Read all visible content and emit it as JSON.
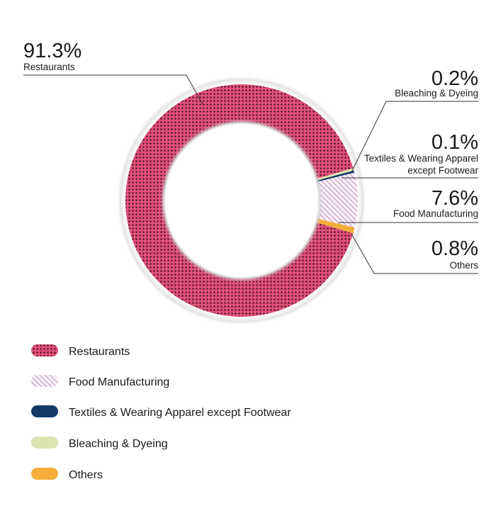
{
  "chart_data": {
    "type": "pie",
    "style": "donut",
    "categories": [
      "Restaurants",
      "Food Manufacturing",
      "Textiles & Wearing Apparel except Footwear",
      "Bleaching & Dyeing",
      "Others"
    ],
    "values": [
      91.3,
      7.6,
      0.1,
      0.2,
      0.8
    ],
    "value_labels": [
      "91.3%",
      "7.6%",
      "0.1%",
      "0.2%",
      "0.8%"
    ],
    "callout_labels": [
      [
        "Restaurants"
      ],
      [
        "Food Manufacturing"
      ],
      [
        "Textiles & Wearing Apparel",
        "except Footwear"
      ],
      [
        "Bleaching & Dyeing"
      ],
      [
        "Others"
      ]
    ],
    "colors": [
      "#d9406b",
      "#c8a4c4",
      "#123b66",
      "#dde3ae",
      "#f5ae3c"
    ],
    "patterns": [
      "dots",
      "hatch",
      "solid",
      "solid",
      "solid"
    ],
    "legend": {
      "placement": "bottom-left",
      "entries": [
        "Restaurants",
        "Food Manufacturing",
        "Textiles & Wearing Apparel except Footwear",
        "Bleaching & Dyeing",
        "Others"
      ]
    }
  }
}
